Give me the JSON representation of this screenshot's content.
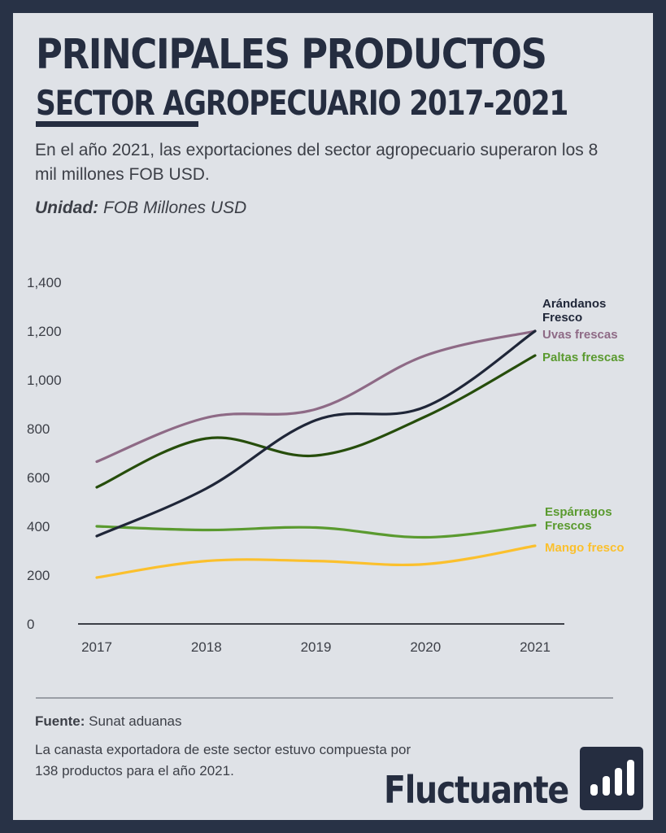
{
  "header": {
    "title_line1": "PRINCIPALES PRODUCTOS",
    "title_line2": "SECTOR AGROPECUARIO 2017-2021",
    "subtitle": "En el año 2021, las exportaciones del sector agropecuario superaron los 8 mil millones FOB USD.",
    "unit_label": "Unidad:",
    "unit_value": "FOB Millones USD"
  },
  "chart_data": {
    "type": "line",
    "title": "",
    "xlabel": "",
    "ylabel": "",
    "x": [
      "2017",
      "2018",
      "2019",
      "2020",
      "2021"
    ],
    "ylim": [
      0,
      1400
    ],
    "yticks": [
      0,
      200,
      400,
      600,
      800,
      1000,
      1200,
      1400
    ],
    "ytick_labels": [
      "0",
      "200",
      "400",
      "600",
      "800",
      "1,000",
      "1,200",
      "1,400"
    ],
    "grid": false,
    "legend": "end-of-line labels",
    "series": [
      {
        "name": "Uvas frescas",
        "color": "#8e6a86",
        "values": [
          665,
          845,
          880,
          1100,
          1200
        ]
      },
      {
        "name": "Paltas frescas",
        "color": "#264d0b",
        "values": [
          560,
          760,
          690,
          850,
          1100
        ]
      },
      {
        "name": "Arándanos Fresco",
        "color": "#1f2638",
        "values": [
          360,
          555,
          835,
          890,
          1200
        ]
      },
      {
        "name": "Espárragos Frescos",
        "color": "#5a9a2f",
        "values": [
          400,
          385,
          395,
          355,
          405
        ]
      },
      {
        "name": "Mango fresco",
        "color": "#fbc02d",
        "values": [
          190,
          258,
          258,
          245,
          320
        ]
      }
    ],
    "end_labels": [
      {
        "series": 2,
        "lines": [
          "Arándanos",
          "Fresco"
        ],
        "color": "#1f2638"
      },
      {
        "series": 0,
        "lines": [
          "Uvas frescas"
        ],
        "color": "#8e6a86"
      },
      {
        "series": 1,
        "lines": [
          "Paltas frescas"
        ],
        "color": "#5a9a2f"
      },
      {
        "series": 3,
        "lines": [
          "Espárragos",
          "Frescos"
        ],
        "color": "#5a9a2f"
      },
      {
        "series": 4,
        "lines": [
          "Mango fresco"
        ],
        "color": "#fbc02d"
      }
    ]
  },
  "footer": {
    "source_label": "Fuente:",
    "source_value": "Sunat aduanas",
    "note": "La canasta exportadora de este sector estuvo compuesta por 138 productos para el año 2021.",
    "brand": "Fluctuante",
    "brand_icon": "bar-chart-icon"
  }
}
